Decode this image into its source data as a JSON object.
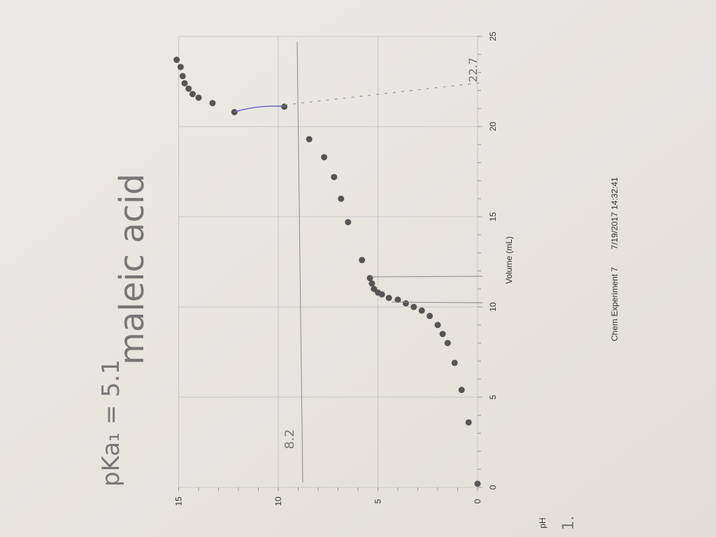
{
  "chart_data": {
    "type": "scatter",
    "xlabel": "Volume (mL)",
    "ylabel": "pH",
    "xlim": [
      0,
      25
    ],
    "ylim": [
      0,
      15
    ],
    "xticks": [
      "0",
      "5",
      "10",
      "15",
      "20",
      "25"
    ],
    "yticks": [
      "0",
      "5",
      "10",
      "15"
    ],
    "grid": true,
    "orientation": "photo rotated 90° counter-clockwise",
    "point_color": "#555555",
    "x": [
      0.2,
      3.6,
      5.4,
      6.9,
      8.0,
      8.5,
      9.0,
      9.5,
      9.8,
      10.0,
      10.2,
      10.4,
      10.5,
      10.7,
      10.8,
      11.0,
      11.3,
      11.6,
      12.6,
      14.7,
      16.0,
      17.2,
      18.3,
      19.3,
      21.1,
      20.8,
      21.3,
      21.6,
      21.8,
      22.1,
      22.4,
      22.8,
      23.3,
      23.7
    ],
    "y": [
      0.0,
      0.45,
      0.8,
      1.15,
      1.5,
      1.75,
      2.0,
      2.4,
      2.8,
      3.2,
      3.6,
      4.0,
      4.45,
      4.8,
      5.0,
      5.2,
      5.3,
      5.4,
      5.8,
      6.5,
      6.85,
      7.2,
      7.7,
      8.45,
      9.7,
      12.2,
      13.3,
      14.0,
      14.3,
      14.5,
      14.7,
      14.8,
      14.9,
      15.1
    ],
    "footer": {
      "experiment": "Chem Experiment 7",
      "timestamp": "7/19/2017 14:32:41"
    },
    "annotations": {
      "title_handwritten": "maleic acid",
      "pka": "pKa₁ = 5.1",
      "value_82": "8.2",
      "value_227": "22.7",
      "mark": "1."
    }
  }
}
